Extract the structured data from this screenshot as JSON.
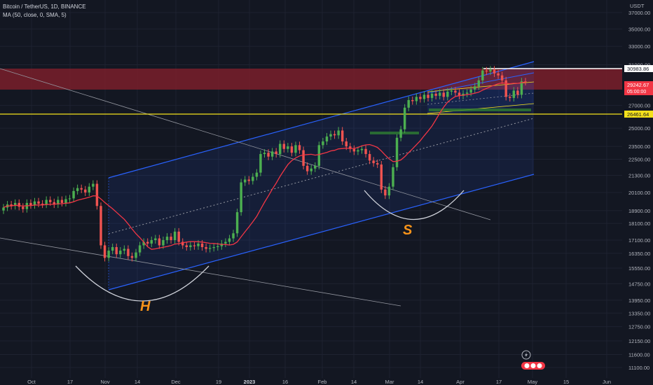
{
  "symbol_line": "Bitcoin / TetherUS, 1D, BINANCE",
  "indicator_line": "MA (50, close, 0, SMA, 5)",
  "currency": "USDT",
  "colors": {
    "background": "#131722",
    "bull": "#26a69a",
    "bull_bright": "#4caf50",
    "bear": "#ef5350",
    "ma": "#f23645",
    "channel": "#2962ff",
    "resistance_zone": "#7a1f2a",
    "support_line": "#f5e11b",
    "neckline_white": "#ffffff",
    "label_orange": "#f7931a",
    "grid": "#1e2230"
  },
  "chart_data": {
    "type": "candlestick",
    "title": "Bitcoin / TetherUS, 1D, BINANCE",
    "x_ticks": [
      "Oct",
      "17",
      "Nov",
      "14",
      "Dec",
      "19",
      "2023",
      "16",
      "Feb",
      "14",
      "Mar",
      "14",
      "Apr",
      "17",
      "May",
      "15",
      "Jun"
    ],
    "y_ticks": [
      37000,
      35000,
      33000,
      31000,
      27000,
      25000,
      23500,
      22500,
      21300,
      20100,
      18900,
      18100,
      17100,
      16350,
      15550,
      14750,
      13950,
      13350,
      12750,
      12150,
      11600,
      11100
    ],
    "y_axis_scale": "log",
    "ylim": [
      10800,
      40000
    ],
    "price_labels": [
      {
        "value": "30983.86",
        "style": "white"
      },
      {
        "value": "29242.67",
        "style": "red",
        "sub": "05:00:00"
      },
      {
        "value": "26461.64",
        "style": "yellow"
      }
    ],
    "closes": [
      19100,
      19300,
      19200,
      19400,
      19150,
      19000,
      19400,
      19250,
      19500,
      19350,
      19300,
      19600,
      19450,
      19300,
      19600,
      19400,
      19650,
      19700,
      20200,
      20400,
      20300,
      20100,
      20500,
      20700,
      19200,
      16800,
      16100,
      16500,
      16700,
      16300,
      16500,
      16600,
      16200,
      16100,
      16400,
      16800,
      17000,
      16900,
      17100,
      17200,
      16800,
      17100,
      17300,
      17100,
      17600,
      17000,
      16800,
      16700,
      16800,
      16750,
      16900,
      16700,
      16600,
      16650,
      16700,
      16750,
      16900,
      17000,
      17200,
      17500,
      18800,
      20800,
      21000,
      20900,
      21200,
      21500,
      22900,
      23000,
      22700,
      23100,
      22900,
      23700,
      23300,
      23500,
      23000,
      23600,
      23200,
      22000,
      21600,
      21800,
      22000,
      23600,
      23900,
      24300,
      24500,
      24400,
      24800,
      23900,
      23500,
      23300,
      23100,
      23200,
      23300,
      22900,
      22400,
      22200,
      22100,
      20300,
      19900,
      20500,
      21900,
      24200,
      24900,
      26800,
      27500,
      27400,
      27800,
      27600,
      28000,
      27700,
      28100,
      27900,
      28200,
      27800,
      28300,
      28400,
      28200,
      27900,
      28100,
      28200,
      28500,
      28800,
      29400,
      30400,
      30300,
      30500,
      30100,
      29900,
      29400,
      27800,
      27700,
      28400,
      28000,
      29300,
      29250
    ]
  },
  "annotations": {
    "head_label": "H",
    "shoulder_label": "S"
  },
  "icons": [
    "lightning-icon",
    "currency-toggle-icon"
  ]
}
